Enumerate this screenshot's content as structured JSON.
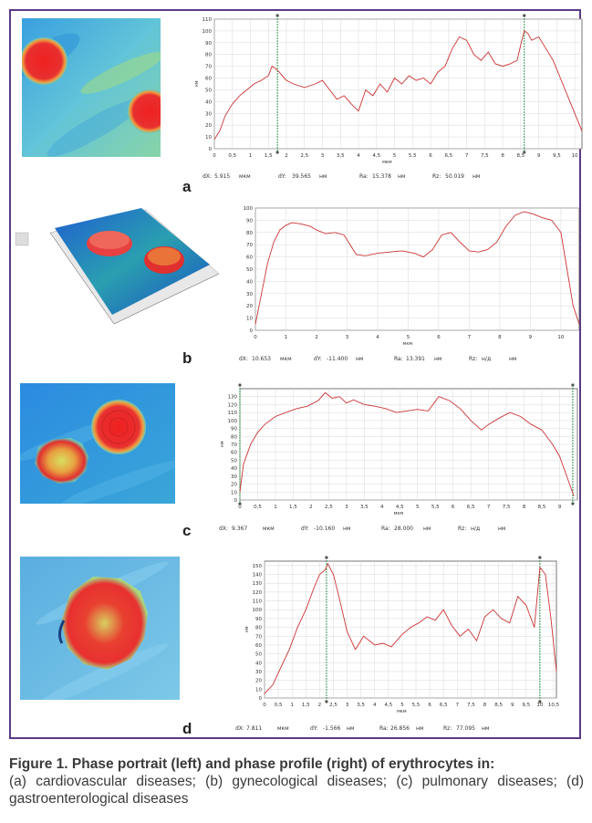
{
  "figure": {
    "caption_title": "Figure 1. Phase portrait (left) and phase profile (right) of erythrocytes in:",
    "caption_body": "(a) cardiovascular diseases; (b) gynecological diseases; (c) pulmonary diseases; (d) gastroenterological diseases"
  },
  "panels": [
    {
      "letter": "a",
      "readouts": {
        "dx_label": "dX:",
        "dx_value": "5.915",
        "dx_unit": "мкм",
        "dy_label": "dY:",
        "dy_value": "39.565",
        "dy_unit": "нм",
        "ra_label": "Ra:",
        "ra_value": "15.378",
        "ra_unit": "нм",
        "rz_label": "Rz:",
        "rz_value": "50.019",
        "rz_unit": "нм"
      }
    },
    {
      "letter": "b",
      "readouts": {
        "dx_label": "dX:",
        "dx_value": "10.653",
        "dx_unit": "мкм",
        "dy_label": "dY:",
        "dy_value": "-11.400",
        "dy_unit": "нм",
        "ra_label": "Ra:",
        "ra_value": "13.391",
        "ra_unit": "нм",
        "rz_label": "Rz:",
        "rz_value": "н/д",
        "rz_unit": "нм"
      }
    },
    {
      "letter": "c",
      "readouts": {
        "dx_label": "dX:",
        "dx_value": "9.367",
        "dx_unit": "мкм",
        "dy_label": "dY:",
        "dy_value": "-10.160",
        "dy_unit": "нм",
        "ra_label": "Ra:",
        "ra_value": "28.000",
        "ra_unit": "нм",
        "rz_label": "Rz:",
        "rz_value": "н/д",
        "rz_unit": "нм"
      }
    },
    {
      "letter": "d",
      "readouts": {
        "dx_label": "dX:",
        "dx_value": "7.811",
        "dx_unit": "мкм",
        "dy_label": "dY:",
        "dy_value": "-1.566",
        "dy_unit": "нм",
        "ra_label": "Ra:",
        "ra_value": "26.856",
        "ra_unit": "нм",
        "rz_label": "Rz:",
        "rz_value": "77.095",
        "rz_unit": "нм"
      }
    }
  ],
  "chart_data": [
    {
      "type": "line",
      "xlabel": "мкм",
      "ylabel": "нм",
      "xlim": [
        0,
        10.2
      ],
      "ylim": [
        0,
        110
      ],
      "xticks": [
        "0",
        "0,5",
        "1",
        "1,5",
        "2",
        "2,5",
        "3",
        "3,5",
        "4",
        "4,5",
        "5",
        "5,5",
        "6",
        "6,5",
        "7",
        "7,5",
        "8",
        "8,5",
        "9",
        "9,5",
        "10"
      ],
      "xtick_values": [
        0,
        0.5,
        1,
        1.5,
        2,
        2.5,
        3,
        3.5,
        4,
        4.5,
        5,
        5.5,
        6,
        6.5,
        7,
        7.5,
        8,
        8.5,
        9,
        9.5,
        10
      ],
      "yticks": [
        0,
        10,
        20,
        30,
        40,
        50,
        60,
        70,
        80,
        90,
        100,
        110
      ],
      "markers_x": [
        1.75,
        8.6
      ],
      "grid": true,
      "series": [
        {
          "color": "#cc3333",
          "x": [
            0,
            0.15,
            0.3,
            0.5,
            0.7,
            0.9,
            1.1,
            1.3,
            1.5,
            1.6,
            1.7,
            1.8,
            2.0,
            2.2,
            2.5,
            2.8,
            3.0,
            3.2,
            3.4,
            3.6,
            3.8,
            4.0,
            4.2,
            4.4,
            4.6,
            4.8,
            5.0,
            5.2,
            5.4,
            5.6,
            5.8,
            6.0,
            6.2,
            6.4,
            6.6,
            6.8,
            7.0,
            7.2,
            7.4,
            7.6,
            7.8,
            8.0,
            8.2,
            8.4,
            8.5,
            8.6,
            8.7,
            8.8,
            9.0,
            9.2,
            9.4,
            9.6,
            9.8,
            10.0,
            10.2
          ],
          "y": [
            8,
            15,
            28,
            38,
            45,
            50,
            55,
            58,
            62,
            70,
            68,
            65,
            58,
            55,
            52,
            55,
            58,
            50,
            42,
            45,
            38,
            32,
            50,
            45,
            55,
            48,
            60,
            55,
            62,
            58,
            60,
            55,
            65,
            70,
            85,
            95,
            92,
            80,
            75,
            82,
            72,
            70,
            72,
            75,
            88,
            100,
            98,
            92,
            95,
            85,
            75,
            60,
            45,
            30,
            15
          ]
        }
      ]
    },
    {
      "type": "line",
      "xlabel": "мкм",
      "ylabel": "нм",
      "xlim": [
        0,
        10.6
      ],
      "ylim": [
        0,
        100
      ],
      "xticks": [
        "0",
        "1",
        "2",
        "3",
        "4",
        "5",
        "6",
        "7",
        "8",
        "9",
        "10"
      ],
      "xtick_values": [
        0,
        1,
        2,
        3,
        4,
        5,
        6,
        7,
        8,
        9,
        10
      ],
      "yticks": [
        0,
        10,
        20,
        30,
        40,
        50,
        60,
        70,
        80,
        90,
        100
      ],
      "markers_x": [],
      "grid": true,
      "series": [
        {
          "color": "#cc3333",
          "x": [
            0,
            0.2,
            0.4,
            0.6,
            0.8,
            1.0,
            1.2,
            1.5,
            1.8,
            2.0,
            2.3,
            2.6,
            2.9,
            3.1,
            3.3,
            3.6,
            4.0,
            4.4,
            4.8,
            5.2,
            5.5,
            5.8,
            6.1,
            6.4,
            6.7,
            7.0,
            7.3,
            7.6,
            7.9,
            8.2,
            8.5,
            8.8,
            9.1,
            9.4,
            9.7,
            10.0,
            10.2,
            10.4,
            10.6
          ],
          "y": [
            5,
            30,
            55,
            72,
            82,
            86,
            88,
            87,
            85,
            82,
            79,
            80,
            78,
            70,
            62,
            61,
            63,
            64,
            65,
            63,
            60,
            66,
            78,
            80,
            72,
            65,
            64,
            66,
            72,
            85,
            94,
            97,
            95,
            92,
            90,
            80,
            50,
            20,
            5
          ]
        }
      ]
    },
    {
      "type": "line",
      "xlabel": "мкм",
      "ylabel": "нм",
      "xlim": [
        0,
        9.5
      ],
      "ylim": [
        0,
        140
      ],
      "xticks": [
        "0",
        "0,5",
        "1",
        "1,5",
        "2",
        "2,5",
        "3",
        "3,5",
        "4",
        "4,5",
        "5",
        "5,5",
        "6",
        "6,5",
        "7",
        "7,5",
        "8",
        "8,5",
        "9"
      ],
      "xtick_values": [
        0,
        0.5,
        1,
        1.5,
        2,
        2.5,
        3,
        3.5,
        4,
        4.5,
        5,
        5.5,
        6,
        6.5,
        7,
        7.5,
        8,
        8.5,
        9
      ],
      "yticks": [
        0,
        10,
        20,
        30,
        40,
        50,
        60,
        70,
        80,
        90,
        100,
        110,
        120,
        130
      ],
      "markers_x": [
        0,
        9.37
      ],
      "grid": true,
      "series": [
        {
          "color": "#cc3333",
          "x": [
            0,
            0.1,
            0.3,
            0.5,
            0.7,
            1.0,
            1.3,
            1.6,
            1.9,
            2.2,
            2.4,
            2.6,
            2.8,
            3.0,
            3.2,
            3.5,
            3.8,
            4.1,
            4.4,
            4.7,
            5.0,
            5.3,
            5.6,
            5.9,
            6.2,
            6.5,
            6.8,
            7.0,
            7.3,
            7.6,
            7.9,
            8.2,
            8.5,
            8.8,
            9.0,
            9.2,
            9.4
          ],
          "y": [
            10,
            45,
            70,
            85,
            95,
            105,
            110,
            115,
            118,
            125,
            135,
            128,
            130,
            122,
            126,
            120,
            118,
            115,
            110,
            112,
            114,
            112,
            130,
            125,
            115,
            100,
            88,
            95,
            103,
            110,
            105,
            95,
            88,
            70,
            55,
            30,
            5
          ]
        }
      ]
    },
    {
      "type": "line",
      "xlabel": "мкм",
      "ylabel": "нм",
      "xlim": [
        0,
        10.6
      ],
      "ylim": [
        0,
        155
      ],
      "xticks": [
        "0",
        "0,5",
        "1",
        "1,5",
        "2",
        "2,5",
        "3",
        "3,5",
        "4",
        "4,5",
        "5",
        "5,5",
        "6",
        "6,5",
        "7",
        "7,5",
        "8",
        "8,5",
        "9",
        "9,5",
        "10",
        "10,5"
      ],
      "xtick_values": [
        0,
        0.5,
        1,
        1.5,
        2,
        2.5,
        3,
        3.5,
        4,
        4.5,
        5,
        5.5,
        6,
        6.5,
        7,
        7.5,
        8,
        8.5,
        9,
        9.5,
        10,
        10.5
      ],
      "yticks": [
        0,
        10,
        20,
        30,
        40,
        50,
        60,
        70,
        80,
        90,
        100,
        110,
        120,
        130,
        140,
        150
      ],
      "markers_x": [
        2.25,
        10.0
      ],
      "grid": true,
      "series": [
        {
          "color": "#cc3333",
          "x": [
            0,
            0.3,
            0.6,
            0.9,
            1.2,
            1.5,
            1.8,
            2.0,
            2.2,
            2.3,
            2.5,
            2.7,
            3.0,
            3.3,
            3.6,
            4.0,
            4.3,
            4.6,
            5.0,
            5.3,
            5.6,
            5.9,
            6.2,
            6.5,
            6.8,
            7.1,
            7.4,
            7.7,
            8.0,
            8.3,
            8.6,
            8.9,
            9.2,
            9.5,
            9.8,
            10.0,
            10.2,
            10.4,
            10.6
          ],
          "y": [
            5,
            15,
            35,
            55,
            80,
            100,
            125,
            140,
            145,
            152,
            140,
            115,
            75,
            55,
            70,
            60,
            62,
            58,
            72,
            80,
            85,
            92,
            88,
            100,
            82,
            70,
            78,
            65,
            92,
            100,
            90,
            85,
            115,
            105,
            80,
            148,
            140,
            90,
            30
          ]
        }
      ]
    }
  ]
}
